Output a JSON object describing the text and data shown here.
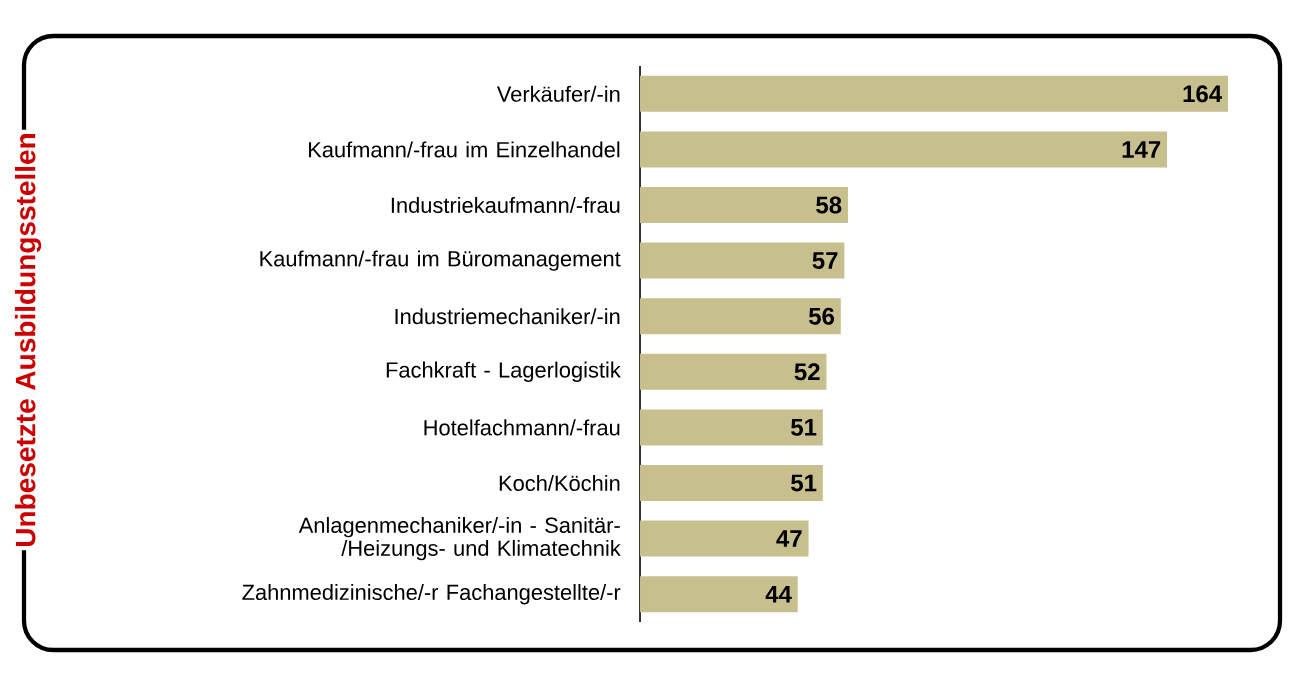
{
  "chart_data": {
    "type": "bar",
    "orientation": "horizontal",
    "annotations": [
      "Unbesetzte Ausbildungsstellen"
    ],
    "categories": [
      "Verkäufer/-in",
      "Kaufmann/-frau im Einzelhandel",
      "Industriekaufmann/-frau",
      "Kaufmann/-frau im Büromanagement",
      "Industriemechaniker/-in",
      "Fachkraft - Lagerlogistik",
      "Hotelfachmann/-frau",
      "Koch/Köchin",
      "Anlagenmechaniker/-in - Sanitär-/Heizungs- und Klimatechnik",
      "Zahnmedizinische/-r Fachangestellte/-r"
    ],
    "values": [
      164,
      147,
      58,
      57,
      56,
      52,
      51,
      51,
      47,
      44
    ],
    "color": "#c8bf8e",
    "data_labels": true
  }
}
